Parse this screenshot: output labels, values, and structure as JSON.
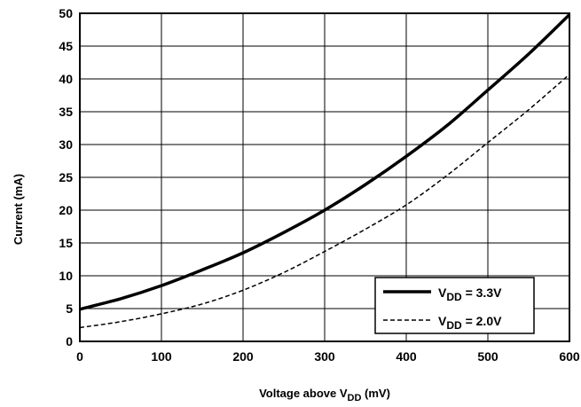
{
  "chart_data": {
    "type": "line",
    "title": "",
    "xlabel": {
      "main": "Voltage above V",
      "sub": "DD",
      "tail": " (mV)"
    },
    "ylabel": "Current (mA)",
    "xlim": [
      0,
      600
    ],
    "ylim": [
      0,
      50
    ],
    "xticks": [
      0,
      100,
      200,
      300,
      400,
      500,
      600
    ],
    "yticks": [
      0,
      5,
      10,
      15,
      20,
      25,
      30,
      35,
      40,
      45,
      50
    ],
    "grid": true,
    "legend_position": "bottom-right",
    "series": [
      {
        "name": {
          "main": "V",
          "sub": "DD",
          "tail": " = 3.3V"
        },
        "style": "solid",
        "color": "#000000",
        "x": [
          0,
          50,
          100,
          150,
          200,
          250,
          300,
          350,
          400,
          450,
          500,
          550,
          600
        ],
        "y": [
          4.9,
          6.5,
          8.5,
          10.9,
          13.5,
          16.6,
          20.0,
          23.9,
          28.2,
          32.9,
          38.3,
          43.8,
          49.8
        ]
      },
      {
        "name": {
          "main": "V",
          "sub": "DD",
          "tail": " = 2.0V"
        },
        "style": "dashed",
        "color": "#000000",
        "x": [
          0,
          50,
          100,
          150,
          200,
          250,
          300,
          350,
          400,
          450,
          500,
          550,
          600
        ],
        "y": [
          2.1,
          3.0,
          4.2,
          5.7,
          7.8,
          10.5,
          13.7,
          17.1,
          20.8,
          25.3,
          30.3,
          35.3,
          40.7
        ]
      }
    ]
  }
}
